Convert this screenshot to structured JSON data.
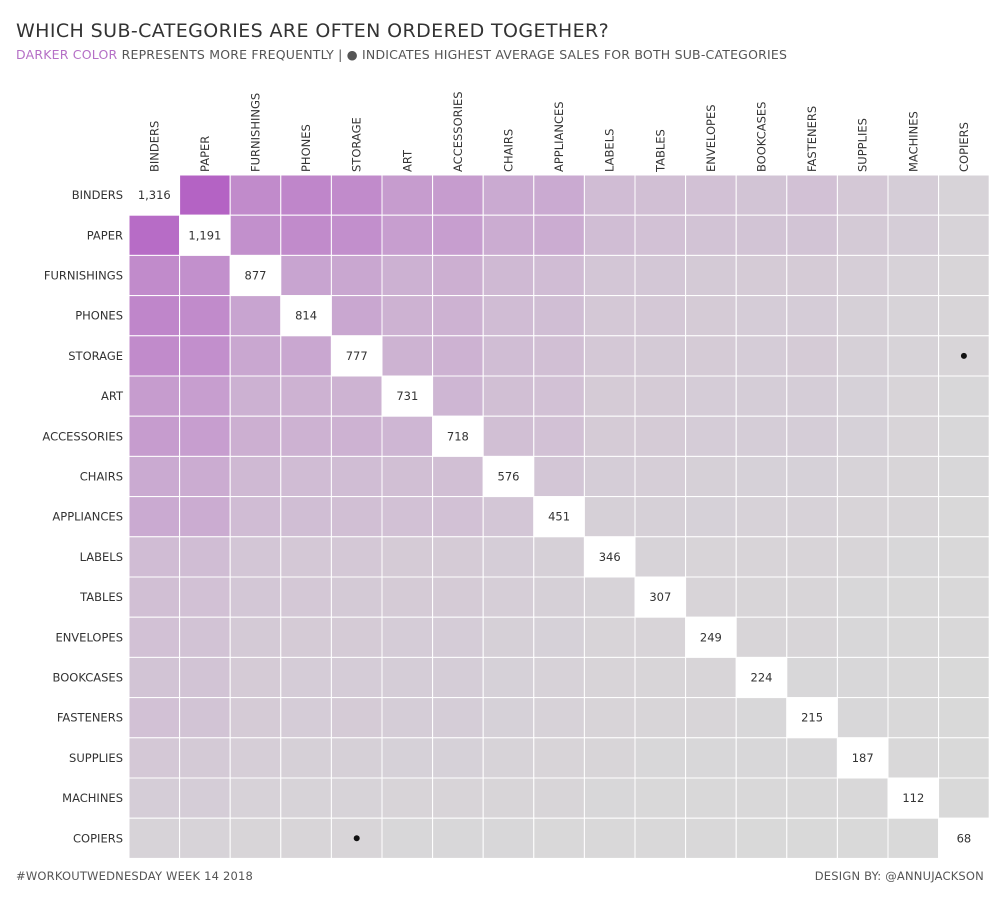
{
  "chart_data": {
    "type": "heatmap",
    "title": "WHICH SUB-CATEGORIES ARE OFTEN ORDERED TOGETHER?",
    "subtitle_accent": "DARKER COLOR",
    "subtitle_rest": " REPRESENTS MORE FREQUENTLY | ● INDICATES HIGHEST AVERAGE SALES FOR BOTH SUB-CATEGORIES",
    "categories": [
      "BINDERS",
      "PAPER",
      "FURNISHINGS",
      "PHONES",
      "STORAGE",
      "ART",
      "ACCESSORIES",
      "CHAIRS",
      "APPLIANCES",
      "LABELS",
      "TABLES",
      "ENVELOPES",
      "BOOKCASES",
      "FASTENERS",
      "SUPPLIES",
      "MACHINES",
      "COPIERS"
    ],
    "diagonal_labels": [
      "1,316",
      "1,191",
      "877",
      "814",
      "777",
      "731",
      "718",
      "576",
      "451",
      "346",
      "307",
      "249",
      "224",
      "215",
      "187",
      "112",
      "68"
    ],
    "diagonal_values": [
      1316,
      1191,
      877,
      814,
      777,
      731,
      718,
      576,
      451,
      346,
      307,
      249,
      224,
      215,
      187,
      112,
      68
    ],
    "intensity_note": "off-diagonal cell shade = relative co-order frequency (0-1), estimated from color",
    "intensity": [
      [
        0,
        1.0,
        0.66,
        0.7,
        0.66,
        0.52,
        0.52,
        0.4,
        0.4,
        0.25,
        0.22,
        0.2,
        0.18,
        0.2,
        0.14,
        0.1,
        0.05
      ],
      [
        0.92,
        0,
        0.62,
        0.66,
        0.63,
        0.5,
        0.5,
        0.38,
        0.38,
        0.24,
        0.2,
        0.19,
        0.18,
        0.18,
        0.13,
        0.1,
        0.05
      ],
      [
        0.66,
        0.62,
        0,
        0.45,
        0.42,
        0.34,
        0.36,
        0.27,
        0.25,
        0.16,
        0.15,
        0.13,
        0.12,
        0.12,
        0.09,
        0.06,
        0.03
      ],
      [
        0.7,
        0.66,
        0.45,
        0,
        0.42,
        0.33,
        0.33,
        0.25,
        0.23,
        0.14,
        0.14,
        0.12,
        0.11,
        0.11,
        0.08,
        0.05,
        0.03
      ],
      [
        0.66,
        0.63,
        0.42,
        0.42,
        0,
        0.32,
        0.33,
        0.24,
        0.22,
        0.14,
        0.13,
        0.12,
        0.11,
        0.12,
        0.08,
        0.05,
        0.03
      ],
      [
        0.52,
        0.5,
        0.34,
        0.33,
        0.32,
        0,
        0.3,
        0.22,
        0.2,
        0.12,
        0.12,
        0.11,
        0.1,
        0.1,
        0.07,
        0.04,
        0.02
      ],
      [
        0.52,
        0.5,
        0.36,
        0.33,
        0.33,
        0.3,
        0,
        0.22,
        0.2,
        0.12,
        0.12,
        0.11,
        0.1,
        0.1,
        0.07,
        0.04,
        0.02
      ],
      [
        0.4,
        0.38,
        0.27,
        0.25,
        0.24,
        0.22,
        0.22,
        0,
        0.16,
        0.1,
        0.09,
        0.08,
        0.07,
        0.07,
        0.05,
        0.03,
        0.02
      ],
      [
        0.4,
        0.38,
        0.25,
        0.23,
        0.22,
        0.2,
        0.2,
        0.16,
        0,
        0.08,
        0.08,
        0.07,
        0.06,
        0.06,
        0.04,
        0.03,
        0.01
      ],
      [
        0.25,
        0.24,
        0.16,
        0.14,
        0.14,
        0.12,
        0.12,
        0.1,
        0.08,
        0,
        0.05,
        0.04,
        0.04,
        0.04,
        0.03,
        0.02,
        0.01
      ],
      [
        0.22,
        0.2,
        0.15,
        0.14,
        0.13,
        0.12,
        0.12,
        0.09,
        0.08,
        0.05,
        0,
        0.04,
        0.03,
        0.03,
        0.02,
        0.01,
        0.01
      ],
      [
        0.2,
        0.19,
        0.13,
        0.12,
        0.12,
        0.11,
        0.11,
        0.08,
        0.07,
        0.04,
        0.04,
        0,
        0.03,
        0.03,
        0.02,
        0.01,
        0.01
      ],
      [
        0.18,
        0.18,
        0.12,
        0.11,
        0.11,
        0.1,
        0.1,
        0.07,
        0.06,
        0.04,
        0.03,
        0.03,
        0,
        0.02,
        0.02,
        0.01,
        0.0
      ],
      [
        0.2,
        0.18,
        0.12,
        0.11,
        0.12,
        0.1,
        0.1,
        0.07,
        0.06,
        0.04,
        0.03,
        0.03,
        0.02,
        0,
        0.02,
        0.01,
        0.0
      ],
      [
        0.14,
        0.13,
        0.09,
        0.08,
        0.08,
        0.07,
        0.07,
        0.05,
        0.04,
        0.03,
        0.02,
        0.02,
        0.02,
        0.02,
        0,
        0.01,
        0.0
      ],
      [
        0.1,
        0.1,
        0.06,
        0.05,
        0.05,
        0.04,
        0.04,
        0.03,
        0.03,
        0.02,
        0.01,
        0.01,
        0.01,
        0.01,
        0.01,
        0,
        0.0
      ],
      [
        0.05,
        0.05,
        0.03,
        0.03,
        0.03,
        0.02,
        0.02,
        0.02,
        0.01,
        0.01,
        0.01,
        0.01,
        0.0,
        0.0,
        0.0,
        0.0,
        0
      ]
    ],
    "highest_avg_sales_marker": {
      "row": "STORAGE",
      "col": "COPIERS",
      "symbol": "●"
    },
    "highest_avg_sales_marker_mirror": {
      "row": "COPIERS",
      "col": "STORAGE",
      "symbol": "●"
    },
    "colors": {
      "low": "#d9d9d9",
      "high": "#b463c4",
      "diagonal": "#ffffff",
      "grid": "#ffffff"
    }
  },
  "footer": {
    "left": "#WORKOUTWEDNESDAY WEEK 14 2018",
    "right": "DESIGN BY: @ANNUJACKSON"
  }
}
